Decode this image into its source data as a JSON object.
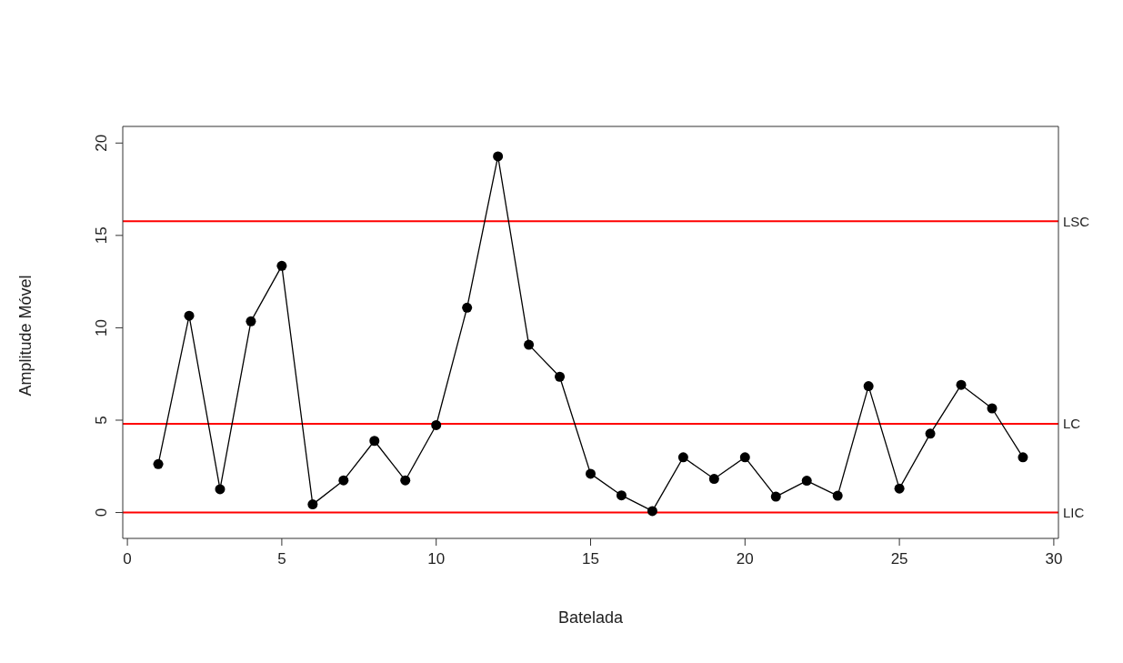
{
  "chart_data": {
    "type": "line",
    "xlabel": "Batelada",
    "ylabel": "Amplitude Móvel",
    "x": [
      1,
      2,
      3,
      4,
      5,
      6,
      7,
      8,
      9,
      10,
      11,
      12,
      13,
      14,
      15,
      16,
      17,
      18,
      19,
      20,
      21,
      22,
      23,
      24,
      25,
      26,
      27,
      28,
      29
    ],
    "series": [
      {
        "color": "#000000",
        "values": [
          2.62,
          10.65,
          1.26,
          10.35,
          13.35,
          0.44,
          1.74,
          3.88,
          1.74,
          4.73,
          11.09,
          19.28,
          9.08,
          7.35,
          2.1,
          0.93,
          0.08,
          2.99,
          1.82,
          2.99,
          0.86,
          1.72,
          0.91,
          6.84,
          1.3,
          4.27,
          6.91,
          5.64,
          2.99
        ]
      }
    ],
    "xlim": [
      -0.15,
      30.15
    ],
    "xticks": [
      0,
      5,
      10,
      15,
      20,
      25,
      30
    ],
    "ylim": [
      -1.4,
      20.9
    ],
    "yticks": [
      0,
      5,
      10,
      15,
      20
    ],
    "ref_lines": [
      {
        "axis": "y",
        "value": 15.77,
        "label": "LSC",
        "color": "#ff0000"
      },
      {
        "axis": "y",
        "value": 4.8,
        "label": "LC",
        "color": "#ff0000"
      },
      {
        "axis": "y",
        "value": 0,
        "label": "LIC",
        "color": "#ff0000"
      }
    ],
    "marker": "circle",
    "line_style": "solid",
    "grid": false,
    "legend": false
  }
}
